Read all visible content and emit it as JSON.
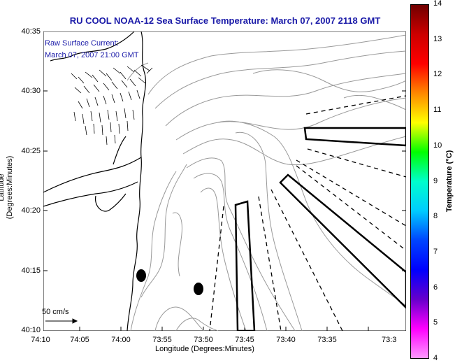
{
  "title": "RU COOL  NOAA-12  Sea Surface Temperature:  March 07, 2007 2118 GMT",
  "raw_current_label": [
    "Raw Surface Current:",
    "March 07, 2007 21:00 GMT"
  ],
  "y_axis": {
    "title": "Latitude (Degrees:Minutes)",
    "ticks": [
      "40:35",
      "40:30",
      "40:25",
      "40:20",
      "40:15",
      "40:10"
    ]
  },
  "x_axis": {
    "title": "Longitude (Degrees:Minutes)",
    "ticks": [
      "74:10",
      "74:05",
      "74:00",
      "73:55",
      "73:50",
      "73:45",
      "73:40",
      "73:35",
      "73:3"
    ]
  },
  "colorbar": {
    "title": "Temperature (°C)",
    "ticks": [
      "14",
      "13",
      "12",
      "11",
      "10",
      "9",
      "8",
      "7",
      "6",
      "5",
      "4"
    ],
    "range": [
      4,
      14
    ],
    "gradient_top_to_bottom": [
      "#700000",
      "#cc0000",
      "#ff0000",
      "#ff8800",
      "#ffff00",
      "#00ff00",
      "#00ffcc",
      "#00ccff",
      "#0044ff",
      "#0000ff",
      "#6600cc",
      "#ff00ff",
      "#ff99ff"
    ]
  },
  "scale_arrow_label": "50 cm/s",
  "colors": {
    "title": "#1a1aa8",
    "coast": "#000000",
    "bathymetry": "#999999"
  }
}
